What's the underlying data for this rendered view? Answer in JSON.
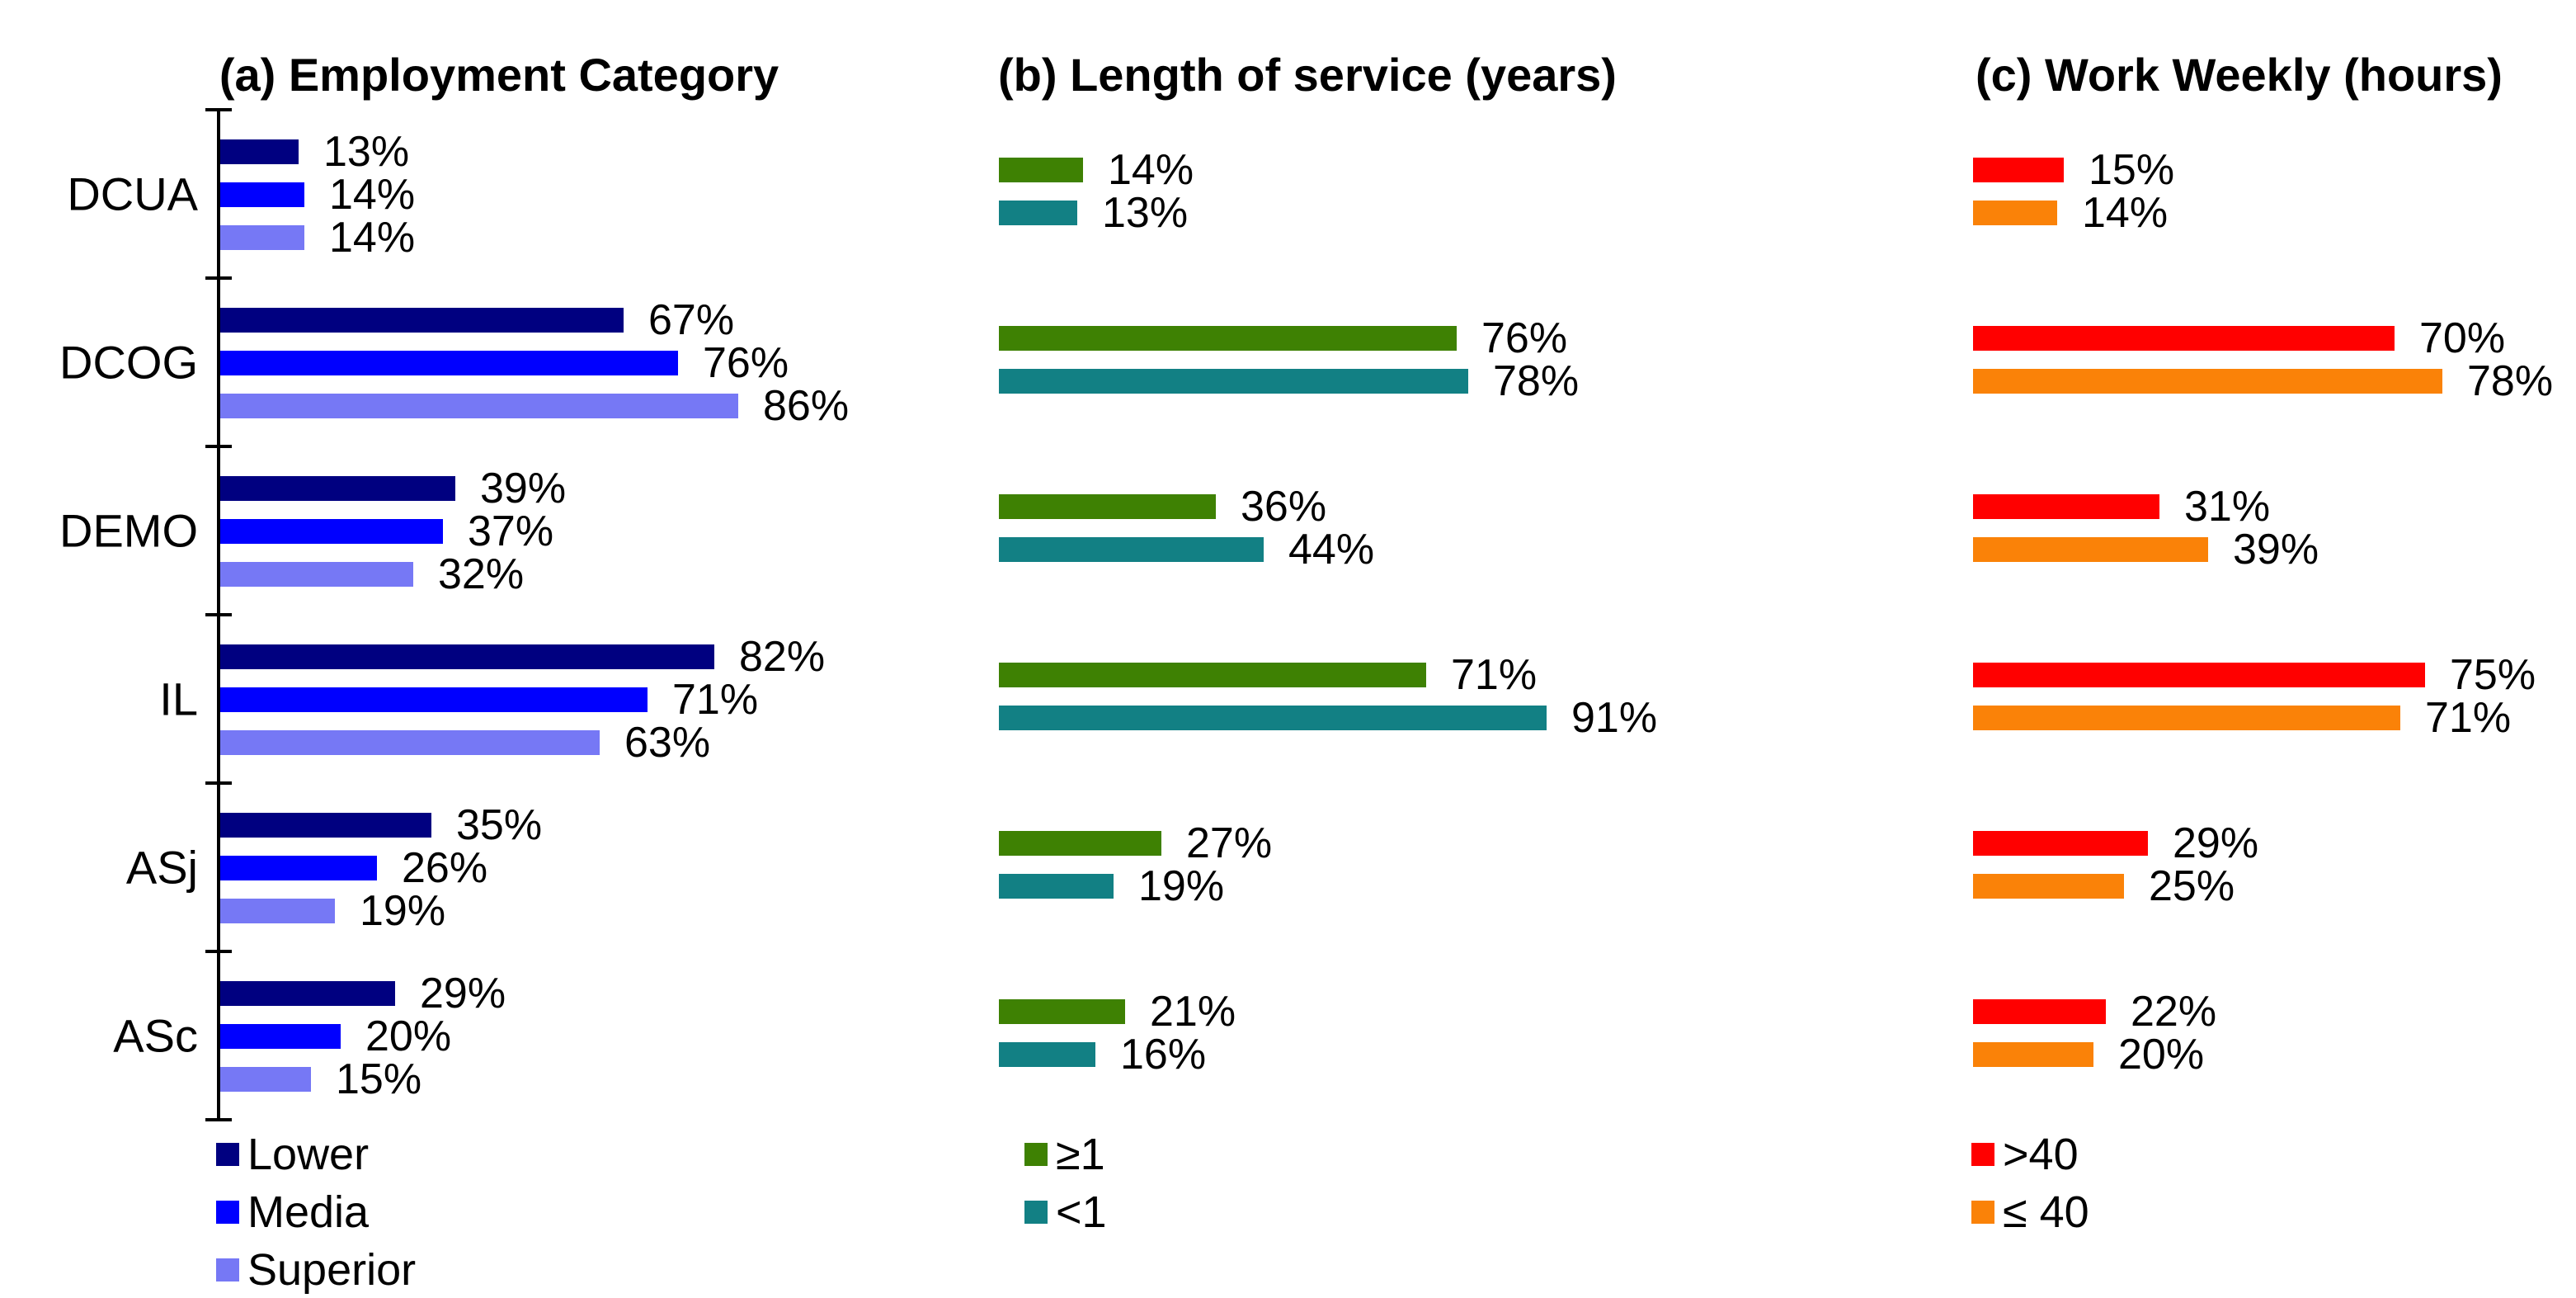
{
  "page": {
    "background": "#FFFFFF"
  },
  "chart_data": [
    {
      "id": "a",
      "type": "bar",
      "orientation": "horizontal",
      "title": "(a) Employment Category",
      "categories": [
        "DCUA",
        "DCOG",
        "DEMO",
        "IL",
        "ASj",
        "ASc"
      ],
      "series": [
        {
          "name": "Lower",
          "color": "#000080",
          "values": [
            13,
            67,
            39,
            82,
            35,
            29
          ]
        },
        {
          "name": "Media",
          "color": "#0000FF",
          "values": [
            14,
            76,
            37,
            71,
            26,
            20
          ]
        },
        {
          "name": "Superior",
          "color": "#7678F5",
          "values": [
            14,
            86,
            32,
            63,
            19,
            15
          ]
        }
      ],
      "value_suffix": "%",
      "xlim": [
        0,
        100
      ],
      "grid": false,
      "axis_line_visible": true,
      "category_labels_visible": true,
      "legend": {
        "position": "bottom-left",
        "entries": [
          "Lower",
          "Media",
          "Superior"
        ]
      }
    },
    {
      "id": "b",
      "type": "bar",
      "orientation": "horizontal",
      "title": "(b) Length of service (years)",
      "categories": [
        "DCUA",
        "DCOG",
        "DEMO",
        "IL",
        "ASj",
        "ASc"
      ],
      "series": [
        {
          "name": "≥1",
          "color": "#3E8103",
          "values": [
            14,
            76,
            36,
            71,
            27,
            21
          ]
        },
        {
          "name": "<1",
          "color": "#128084",
          "values": [
            13,
            78,
            44,
            91,
            19,
            16
          ]
        }
      ],
      "value_suffix": "%",
      "xlim": [
        0,
        100
      ],
      "grid": false,
      "axis_line_visible": false,
      "category_labels_visible": false,
      "legend": {
        "position": "bottom-left",
        "entries": [
          "≥1",
          "<1"
        ]
      }
    },
    {
      "id": "c",
      "type": "bar",
      "orientation": "horizontal",
      "title": "(c) Work Weekly (hours)",
      "categories": [
        "DCUA",
        "DCOG",
        "DEMO",
        "IL",
        "ASj",
        "ASc"
      ],
      "series": [
        {
          "name": ">40",
          "color": "#FF0000",
          "values": [
            15,
            70,
            31,
            75,
            29,
            22
          ]
        },
        {
          "name": "≤ 40",
          "color": "#FA8208",
          "values": [
            14,
            78,
            39,
            71,
            25,
            20
          ]
        }
      ],
      "value_suffix": "%",
      "xlim": [
        0,
        100
      ],
      "grid": false,
      "axis_line_visible": false,
      "category_labels_visible": false,
      "legend": {
        "position": "bottom-left",
        "entries": [
          ">40",
          "≤ 40"
        ]
      }
    }
  ]
}
